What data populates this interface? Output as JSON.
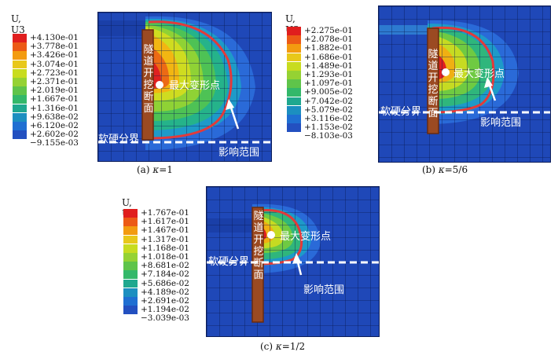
{
  "legend_title": "U, U3",
  "labels": {
    "tunnel": [
      "隧",
      "道",
      "开",
      "挖",
      "断",
      "面"
    ],
    "max_point": "最大变形点",
    "boundary": "软硬分界",
    "influence": "影响范围"
  },
  "legend_colors": [
    "#e01e1e",
    "#ec5a16",
    "#f39b10",
    "#e8c81a",
    "#c8dc1f",
    "#95d233",
    "#5fc44a",
    "#33b86a",
    "#1fa88f",
    "#1c8fc0",
    "#1f6fd2",
    "#2350c0",
    "#1d3aa8"
  ],
  "panels": [
    {
      "caption_prefix": "(a) ",
      "caption_var": "κ",
      "caption_suffix": "=1",
      "legend_values": [
        "+4.130e-01",
        "+3.778e-01",
        "+3.426e-01",
        "+3.074e-01",
        "+2.723e-01",
        "+2.371e-01",
        "+2.019e-01",
        "+1.667e-01",
        "+1.316e-01",
        "+9.638e-02",
        "+6.120e-02",
        "+2.602e-02",
        "−9.155e-03"
      ]
    },
    {
      "caption_prefix": "(b) ",
      "caption_var": "κ",
      "caption_suffix": "=5/6",
      "legend_values": [
        "+2.275e-01",
        "+2.078e-01",
        "+1.882e-01",
        "+1.686e-01",
        "+1.489e-01",
        "+1.293e-01",
        "+1.097e-01",
        "+9.005e-02",
        "+7.042e-02",
        "+5.079e-02",
        "+3.116e-02",
        "+1.153e-02",
        "−8.103e-03"
      ]
    },
    {
      "caption_prefix": "(c) ",
      "caption_var": "κ",
      "caption_suffix": "=1/2",
      "legend_values": [
        "+1.767e-01",
        "+1.617e-01",
        "+1.467e-01",
        "+1.317e-01",
        "+1.168e-01",
        "+1.018e-01",
        "+8.681e-02",
        "+7.184e-02",
        "+5.686e-02",
        "+4.189e-02",
        "+2.691e-02",
        "+1.194e-02",
        "−3.039e-03"
      ]
    }
  ]
}
